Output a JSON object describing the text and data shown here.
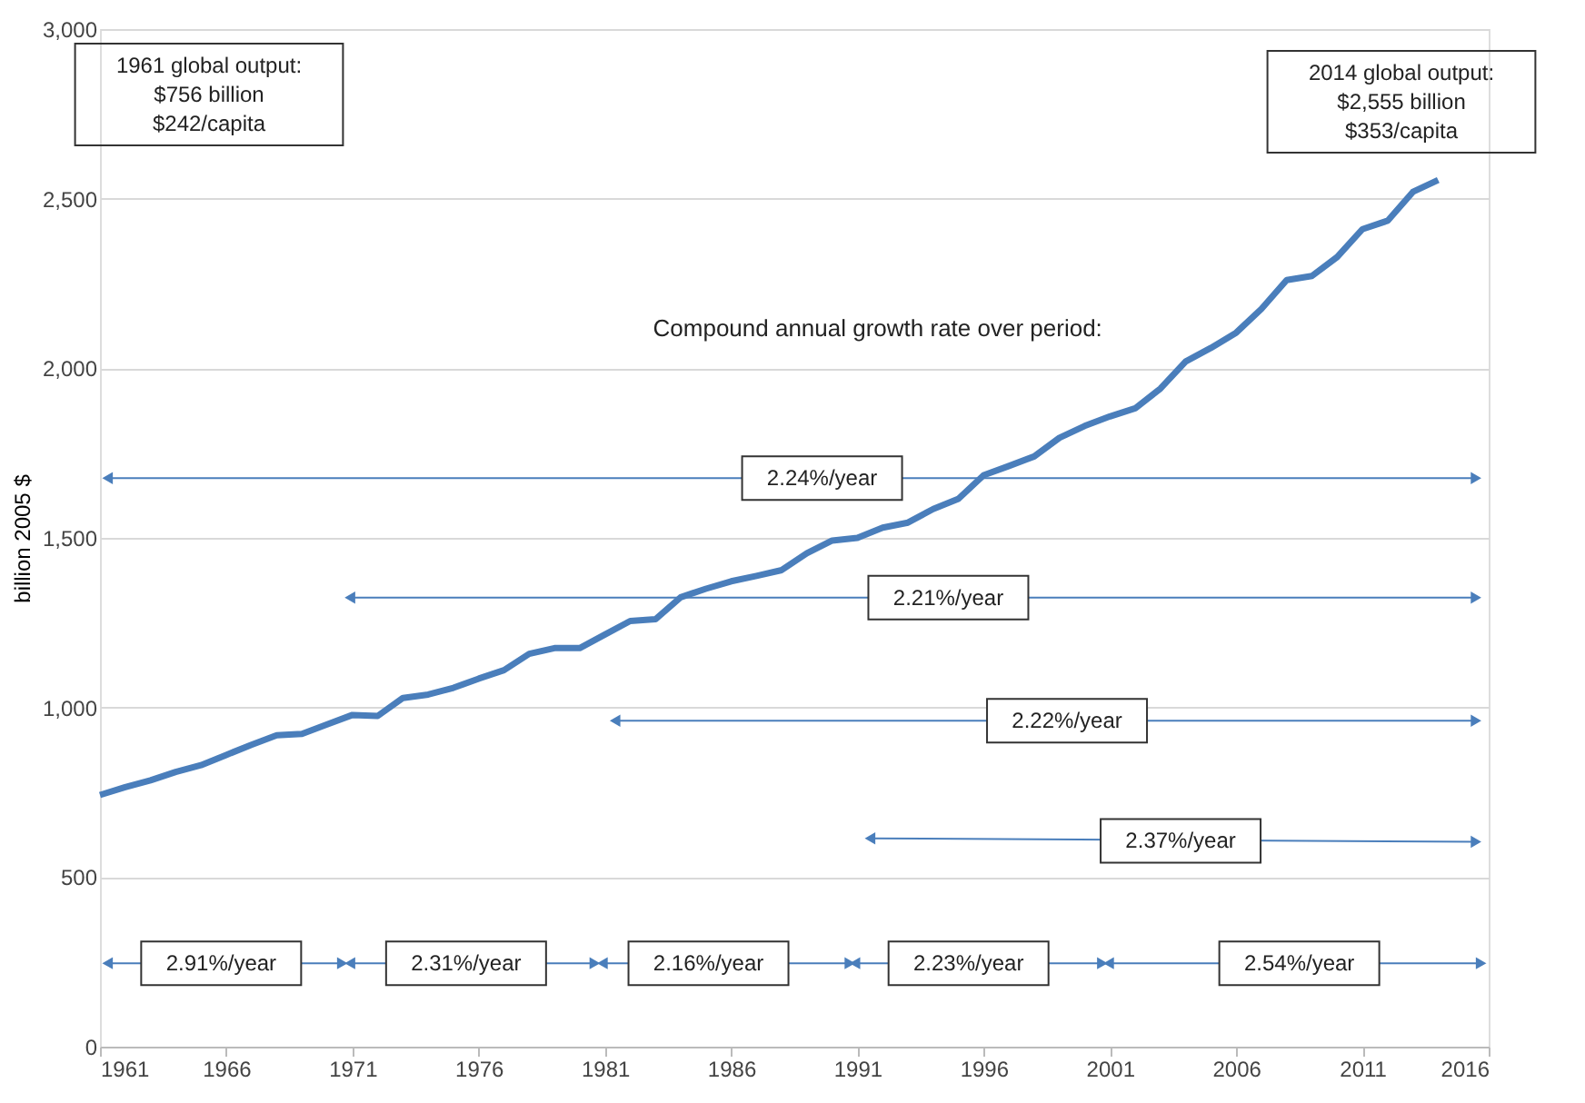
{
  "chart_data": {
    "type": "line",
    "ylabel": "billion 2005 $",
    "x": [
      1961,
      1962,
      1963,
      1964,
      1965,
      1966,
      1967,
      1968,
      1969,
      1970,
      1971,
      1972,
      1973,
      1974,
      1975,
      1976,
      1977,
      1978,
      1979,
      1980,
      1981,
      1982,
      1983,
      1984,
      1985,
      1986,
      1987,
      1988,
      1989,
      1990,
      1991,
      1992,
      1993,
      1994,
      1995,
      1996,
      1997,
      1998,
      1999,
      2000,
      2001,
      2002,
      2003,
      2004,
      2005,
      2006,
      2007,
      2008,
      2009,
      2010,
      2011,
      2012,
      2013,
      2014
    ],
    "series": [
      {
        "color": "#4a7ebb",
        "values": [
          742,
          765,
          785,
          810,
          830,
          860,
          890,
          918,
          922,
          950,
          978,
          975,
          1028,
          1038,
          1058,
          1085,
          1110,
          1158,
          1175,
          1175,
          1215,
          1255,
          1260,
          1325,
          1350,
          1372,
          1388,
          1405,
          1455,
          1492,
          1500,
          1530,
          1545,
          1585,
          1615,
          1685,
          1712,
          1740,
          1795,
          1830,
          1858,
          1882,
          1940,
          2020,
          2060,
          2105,
          2175,
          2260,
          2272,
          2328,
          2410,
          2435,
          2520,
          2555
        ]
      },
      {
        "color": "#4a7ebb",
        "marker": "triangle",
        "x": [
          1961.3,
          2015.5
        ],
        "values": [
          1676,
          1676
        ]
      },
      {
        "color": "#4a7ebb",
        "marker": "triangle",
        "x": [
          1970.9,
          2015.5
        ],
        "values": [
          1324,
          1324
        ]
      },
      {
        "color": "#4a7ebb",
        "marker": "triangle",
        "x": [
          1981.4,
          2015.5
        ],
        "values": [
          961,
          961
        ]
      },
      {
        "color": "#4a7ebb",
        "marker": "triangle",
        "x": [
          1991.5,
          2015.5
        ],
        "values": [
          614,
          604
        ]
      },
      {
        "color": "#4a7ebb",
        "marker": "triangle",
        "x": [
          1961.3,
          1970.6
        ],
        "values": [
          246,
          246
        ]
      },
      {
        "color": "#4a7ebb",
        "marker": "triangle",
        "x": [
          1970.9,
          1980.6
        ],
        "values": [
          246,
          246
        ]
      },
      {
        "color": "#4a7ebb",
        "marker": "triangle",
        "x": [
          1980.9,
          1990.7
        ],
        "values": [
          246,
          246
        ]
      },
      {
        "color": "#4a7ebb",
        "marker": "triangle",
        "x": [
          1990.9,
          2000.7
        ],
        "values": [
          246,
          246
        ]
      },
      {
        "color": "#4a7ebb",
        "marker": "triangle",
        "x": [
          2000.95,
          2015.7
        ],
        "values": [
          246,
          246
        ]
      }
    ],
    "xlim": [
      1961,
      2016
    ],
    "xticks": [
      1961,
      1966,
      1971,
      1976,
      1981,
      1986,
      1991,
      1996,
      2001,
      2006,
      2011,
      2016
    ],
    "ylim": [
      0,
      3000
    ],
    "yticks": [
      0,
      500,
      {
        "value": 1000,
        "label": "1,000"
      },
      {
        "value": 1500,
        "label": "1,500"
      },
      {
        "value": 2000,
        "label": "2,000"
      },
      {
        "value": 2500,
        "label": "2,500"
      },
      {
        "value": 3000,
        "label": "3,000"
      }
    ],
    "grid": "y",
    "annotations": [
      "1961 global output:\n$756 billion\n$242/capita",
      "2014 global output:\n$2,555 billion\n$353/capita",
      "Compound annual growth rate over period:",
      {
        "text": "2.24%/year",
        "x": 1989.6,
        "y": 1676
      },
      {
        "text": "2.21%/year",
        "x": 1994.6,
        "y": 1324
      },
      {
        "text": "2.22%/year",
        "x": 1999.3,
        "y": 961
      },
      {
        "text": "2.37%/year",
        "x": 2003.8,
        "y": 607
      },
      {
        "text": "2.91%/year",
        "x": 1965.8,
        "y": 246
      },
      {
        "text": "2.31%/year",
        "x": 1975.5,
        "y": 246
      },
      {
        "text": "2.16%/year",
        "x": 1985.1,
        "y": 246
      },
      {
        "text": "2.23%/year",
        "x": 1995.4,
        "y": 246
      },
      {
        "text": "2.54%/year",
        "x": 2008.5,
        "y": 246
      }
    ]
  }
}
